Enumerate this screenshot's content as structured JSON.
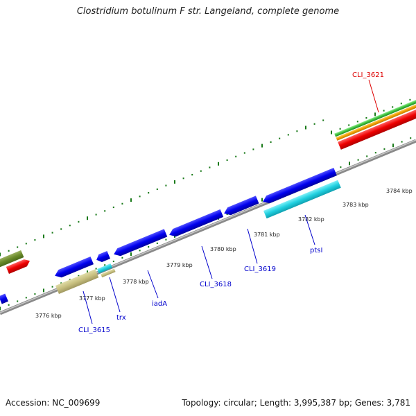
{
  "title": "Clostridium botulinum F str. Langeland, complete genome",
  "footer": {
    "accession": "Accession: NC_009699",
    "topology": "Topology: circular; Length: 3,995,387 bp; Genes: 3,781"
  },
  "ticks": [
    {
      "label": "3776 kbp"
    },
    {
      "label": "3777 kbp"
    },
    {
      "label": "3778 kbp"
    },
    {
      "label": "3779 kbp"
    },
    {
      "label": "3780 kbp"
    },
    {
      "label": "3781 kbp"
    },
    {
      "label": "3782 kbp"
    },
    {
      "label": "3783 kbp"
    },
    {
      "label": "3784 kbp"
    }
  ],
  "gene_labels": [
    {
      "text": "CLI_3621",
      "color": "#dd0000"
    },
    {
      "text": "CLI_3615",
      "color": "#0000cc"
    },
    {
      "text": "trx",
      "color": "#0000cc"
    },
    {
      "text": "iadA",
      "color": "#0000cc"
    },
    {
      "text": "CLI_3618",
      "color": "#0000cc"
    },
    {
      "text": "CLI_3619",
      "color": "#0000cc"
    },
    {
      "text": "ptsI",
      "color": "#0000cc"
    }
  ],
  "colors": {
    "backbone": "#8a8a8a",
    "tick": "#1a7a1a",
    "cds_reverse": "#0000ee",
    "cds_cyan": "#20d0e0",
    "cds_tan": "#c8c080",
    "cds_red": "#ee0000",
    "cds_olive": "#6a8a2a",
    "cds_green": "#40c040",
    "cds_orange": "#f0a000"
  }
}
